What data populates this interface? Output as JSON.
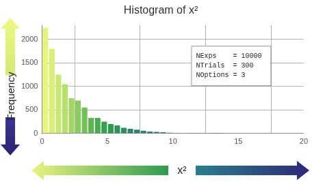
{
  "chart_data": {
    "type": "histogram",
    "title": "Histogram of x²",
    "x_label": "x²",
    "y_label": "Frequency",
    "annotations": [
      "NExps    = 10000",
      "NTrials  = 300",
      "NOptions = 3"
    ],
    "bins": [
      0,
      0.5,
      1,
      1.5,
      2,
      2.5,
      3,
      3.5,
      4,
      4.5,
      5,
      5.5,
      6,
      6.5,
      7,
      7.5,
      8,
      8.5,
      9,
      9.5,
      10,
      10.5,
      11,
      11.5,
      12,
      12.5,
      13,
      13.5,
      14
    ],
    "values": [
      2250,
      1800,
      1250,
      1050,
      750,
      700,
      550,
      330,
      330,
      250,
      200,
      170,
      120,
      100,
      80,
      60,
      40,
      35,
      25,
      15,
      12,
      8,
      6,
      4,
      5,
      3,
      2,
      3
    ],
    "colors": [
      "#e8f47c",
      "#d8ee76",
      "#c8e870",
      "#b6e06a",
      "#a2d664",
      "#8ccc5e",
      "#74c058",
      "#5eb454",
      "#4aaa50",
      "#38a04e",
      "#2e9a50",
      "#2c9456",
      "#2a8e5e",
      "#2a8866",
      "#2a846e",
      "#2a8076",
      "#2a7c7e",
      "#2a7884",
      "#2a7288",
      "#2a6c8a",
      "#2a668c",
      "#2b608c",
      "#2c5a8c",
      "#2c548c",
      "#2d4e8c",
      "#2e488a",
      "#2e4288",
      "#2e3c86"
    ],
    "xlim": [
      0,
      20
    ],
    "xticks": [
      0,
      5,
      10,
      15,
      20
    ],
    "ylim": [
      0,
      2300
    ],
    "yticks": [
      0,
      500,
      1000,
      1500,
      2000
    ],
    "grid": true
  }
}
